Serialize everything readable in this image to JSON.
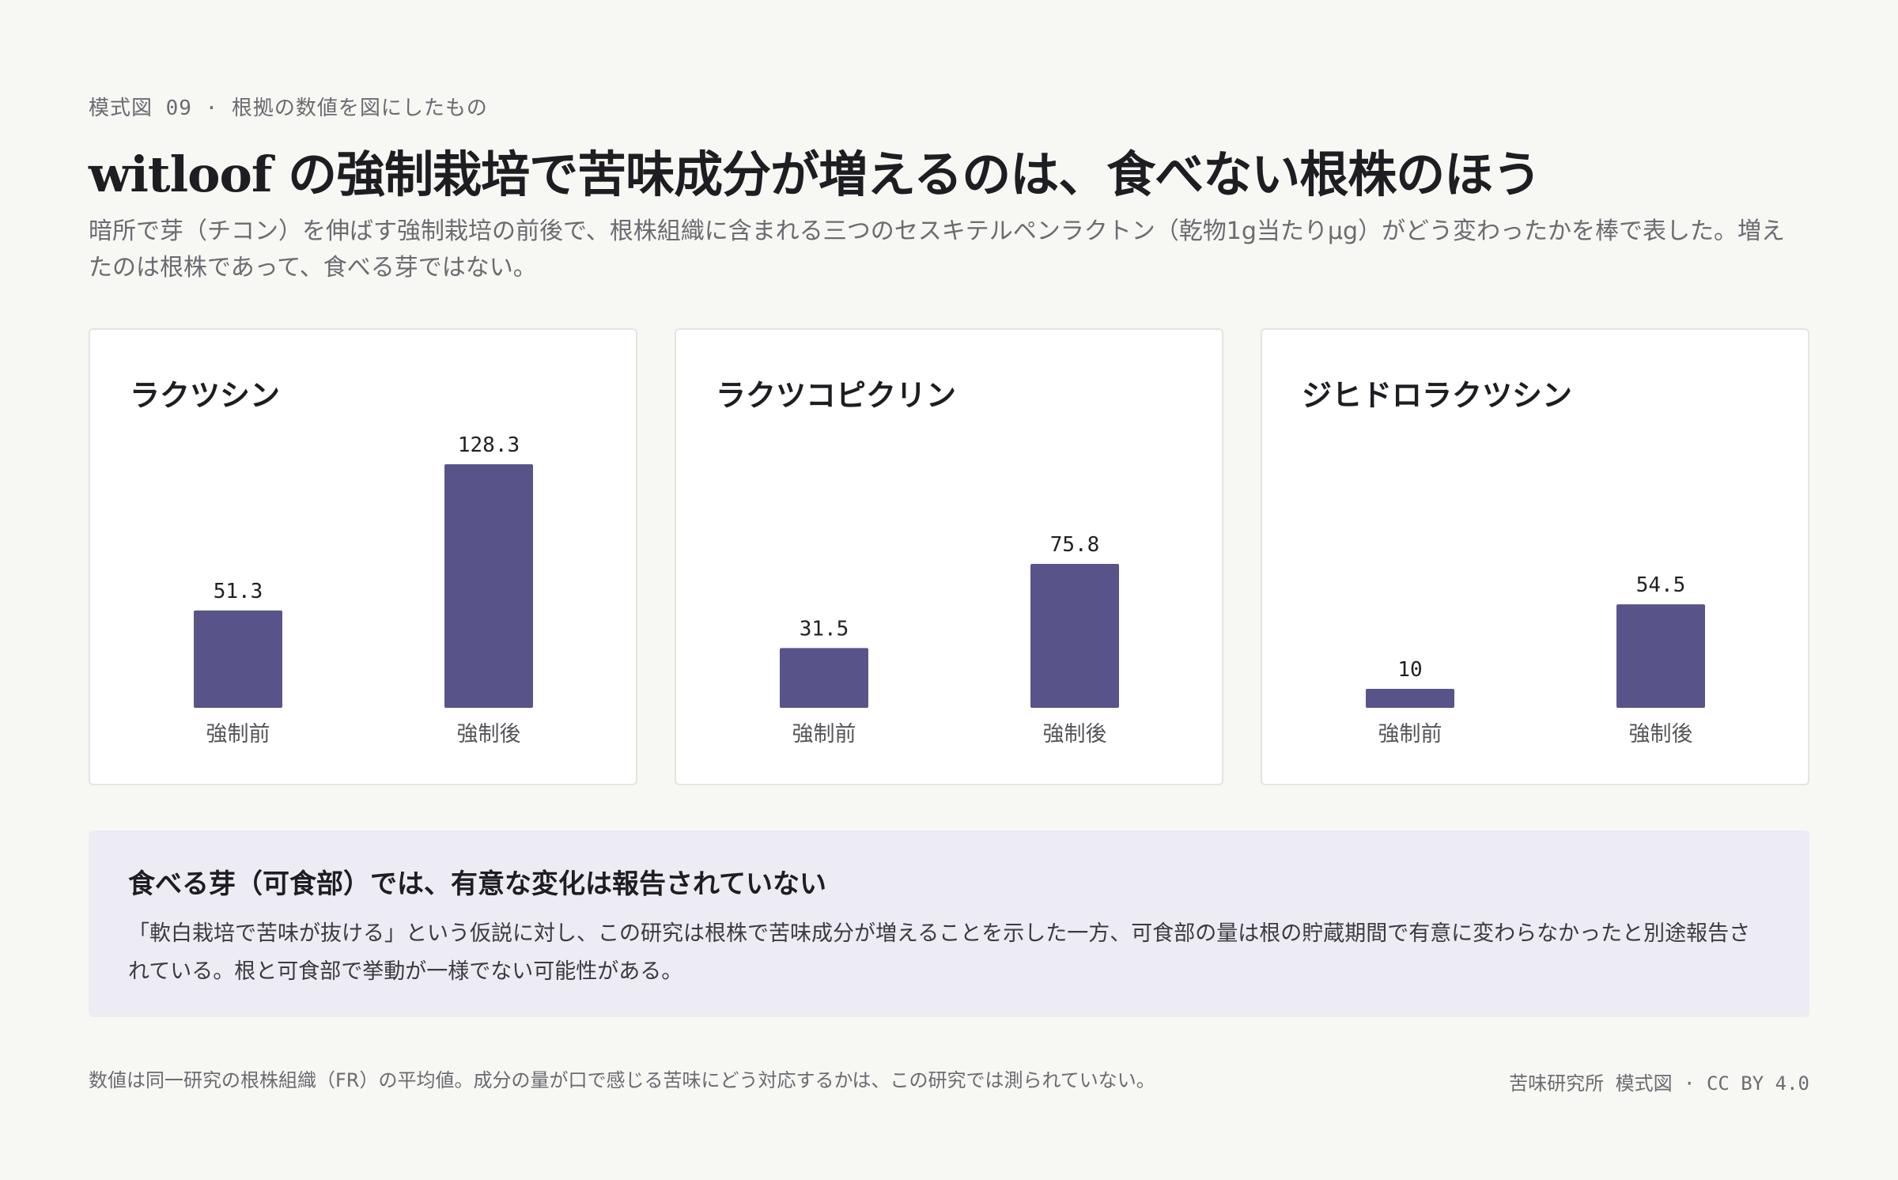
{
  "header": {
    "eyebrow": "模式図 09 · 根拠の数値を図にしたもの",
    "title": "witloof の強制栽培で苦味成分が増えるのは、食べない根株のほう",
    "subtitle": "暗所で芽（チコン）を伸ばす強制栽培の前後で、根株組織に含まれる三つのセスキテルペンラクトン（乾物1g当たりμg）がどう変わったかを棒で表した。増えたのは根株であって、食べる芽ではない。"
  },
  "colors": {
    "bar": "#58548a",
    "background": "#f7f7f4",
    "note_background": "#edecf5"
  },
  "chart_data": [
    {
      "type": "bar",
      "title": "ラクツシン",
      "categories": [
        "強制前",
        "強制後"
      ],
      "values": [
        51.3,
        128.3
      ],
      "value_labels": [
        "51.3",
        "128.3"
      ],
      "ylim": [
        0,
        128.3
      ],
      "grid": false
    },
    {
      "type": "bar",
      "title": "ラクツコピクリン",
      "categories": [
        "強制前",
        "強制後"
      ],
      "values": [
        31.5,
        75.8
      ],
      "value_labels": [
        "31.5",
        "75.8"
      ],
      "ylim": [
        0,
        128.3
      ],
      "grid": false
    },
    {
      "type": "bar",
      "title": "ジヒドロラクツシン",
      "categories": [
        "強制前",
        "強制後"
      ],
      "values": [
        10,
        54.5
      ],
      "value_labels": [
        "10",
        "54.5"
      ],
      "ylim": [
        0,
        128.3
      ],
      "grid": false
    }
  ],
  "note": {
    "title": "食べる芽（可食部）では、有意な変化は報告されていない",
    "body": "「軟白栽培で苦味が抜ける」という仮説に対し、この研究は根株で苦味成分が増えることを示した一方、可食部の量は根の貯蔵期間で有意に変わらなかったと別途報告されている。根と可食部で挙動が一様でない可能性がある。"
  },
  "footer": {
    "left": "数値は同一研究の根株組織（FR）の平均値。成分の量が口で感じる苦味にどう対応するかは、この研究では測られていない。",
    "right": "苦味研究所 模式図 · CC BY 4.0"
  }
}
